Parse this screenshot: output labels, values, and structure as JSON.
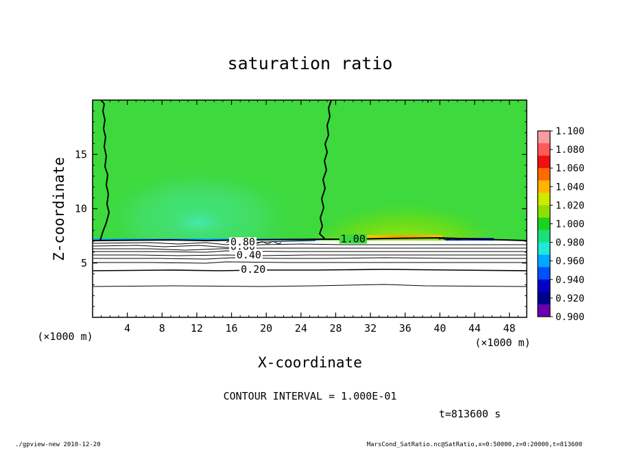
{
  "chart_data": {
    "type": "heatmap",
    "title": "saturation ratio",
    "xlabel": "X-coordinate",
    "ylabel": "Z-coordinate",
    "x_unit": "(×1000 m)",
    "y_unit": "(×1000 m)",
    "xlim": [
      0,
      50
    ],
    "ylim": [
      0,
      20
    ],
    "x_ticks": [
      4,
      8,
      12,
      16,
      20,
      24,
      28,
      32,
      36,
      40,
      44,
      48
    ],
    "y_ticks": [
      5,
      10,
      15
    ],
    "contour_interval": "CONTOUR INTERVAL = 1.000E-01",
    "time_label": "t=813600 s",
    "contour_labels": [
      {
        "text": "0.20",
        "x": 18.5,
        "z": 4.3
      },
      {
        "text": "0.40",
        "x": 18.0,
        "z": 5.6
      },
      {
        "text": "0.60",
        "x": 17.3,
        "z": 6.4
      },
      {
        "text": "0.80",
        "x": 17.3,
        "z": 6.8
      },
      {
        "text": "1.00",
        "x": 30.0,
        "z": 7.1
      }
    ],
    "colorbar": {
      "labels": [
        "1.100",
        "1.080",
        "1.060",
        "1.040",
        "1.020",
        "1.000",
        "0.980",
        "0.960",
        "0.940",
        "0.920",
        "0.900"
      ],
      "colors": [
        "#ff9a9a",
        "#ff5a5a",
        "#f01010",
        "#ff6a00",
        "#ffb400",
        "#d0e800",
        "#8ee000",
        "#1cd21c",
        "#18e07a",
        "#1ee8d8",
        "#00a8ff",
        "#0050ff",
        "#0000c8",
        "#00008a",
        "#6a00b0"
      ]
    },
    "field": {
      "below_z_blank_below": 7.1,
      "background_value": 0.99,
      "regions": [
        {
          "desc": "cyan-ish low",
          "x": 12,
          "z": 10,
          "value": 0.985
        },
        {
          "desc": "yellow high",
          "x": 33,
          "z": 7.6,
          "value": 1.03
        }
      ]
    }
  },
  "footer": {
    "left": "./gpview-new  2010-12-20",
    "right": "MarsCond_SatRatio.nc@SatRatio,x=0:50000,z=0:20000,t=813600"
  }
}
